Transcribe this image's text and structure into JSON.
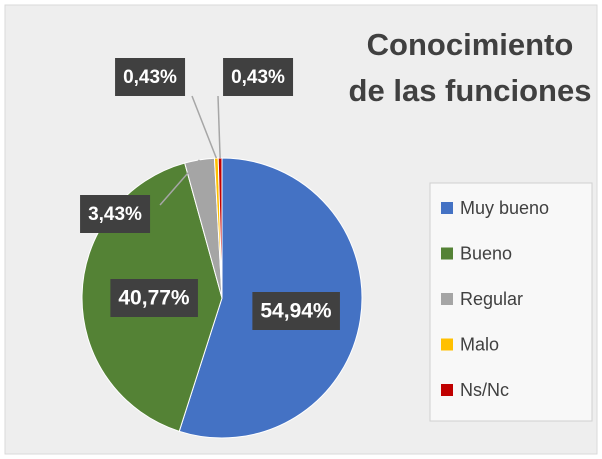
{
  "chart_data": {
    "type": "pie",
    "title": "Conocimiento de las funciones",
    "categories": [
      "Muy bueno",
      "Bueno",
      "Regular",
      "Malo",
      "Ns/Nc"
    ],
    "values": [
      54.94,
      40.77,
      3.43,
      0.43,
      0.43
    ],
    "value_labels": [
      "54,94%",
      "40,77%",
      "3,43%",
      "0,43%",
      "0,43%"
    ],
    "colors": [
      "#4472c4",
      "#548235",
      "#a5a5a5",
      "#ffc000",
      "#c00000"
    ],
    "legend": "right"
  }
}
